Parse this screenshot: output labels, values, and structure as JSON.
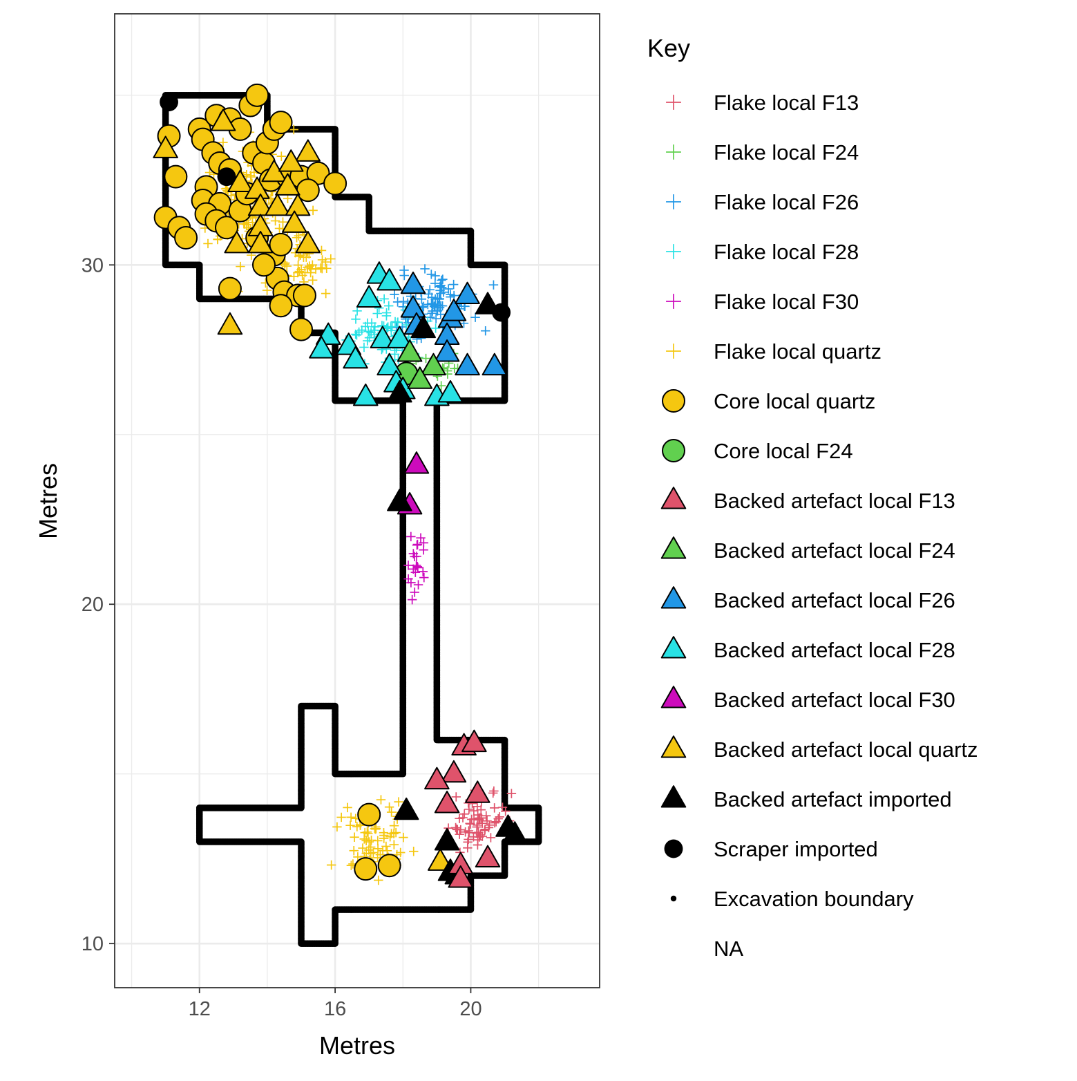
{
  "chart_data": {
    "type": "scatter",
    "title": "",
    "xlabel": "Metres",
    "ylabel": "Metres",
    "xlim": [
      9.5,
      23.8
    ],
    "ylim": [
      8.7,
      37.4
    ],
    "x_ticks": [
      12,
      16,
      20
    ],
    "y_ticks": [
      10,
      20,
      30
    ],
    "grid": true,
    "legend": {
      "title": "Key",
      "placement": "right",
      "entries": [
        {
          "label": "Flake local F13",
          "shape": "plus",
          "color": "#df536b"
        },
        {
          "label": "Flake local F24",
          "shape": "plus",
          "color": "#61d04f"
        },
        {
          "label": "Flake local F26",
          "shape": "plus",
          "color": "#2297e6"
        },
        {
          "label": "Flake local F28",
          "shape": "plus",
          "color": "#28e2e5"
        },
        {
          "label": "Flake local F30",
          "shape": "plus",
          "color": "#cd0bbc"
        },
        {
          "label": "Flake local quartz",
          "shape": "plus",
          "color": "#f5c710"
        },
        {
          "label": "Core local quartz",
          "shape": "circle",
          "color": "#f5c710"
        },
        {
          "label": "Core local F24",
          "shape": "circle",
          "color": "#61d04f"
        },
        {
          "label": "Backed artefact local F13",
          "shape": "triangle",
          "color": "#df536b"
        },
        {
          "label": "Backed artefact local F24",
          "shape": "triangle",
          "color": "#61d04f"
        },
        {
          "label": "Backed artefact local F26",
          "shape": "triangle",
          "color": "#2297e6"
        },
        {
          "label": "Backed artefact local F28",
          "shape": "triangle",
          "color": "#28e2e5"
        },
        {
          "label": "Backed artefact local F30",
          "shape": "triangle",
          "color": "#cd0bbc"
        },
        {
          "label": "Backed artefact local quartz",
          "shape": "triangle",
          "color": "#f5c710"
        },
        {
          "label": "Backed artefact imported",
          "shape": "solid-triangle",
          "color": "#000000"
        },
        {
          "label": "Scraper imported",
          "shape": "solid-circle",
          "color": "#000000"
        },
        {
          "label": "Excavation boundary",
          "shape": "dot",
          "color": "#000000"
        },
        {
          "label": "NA",
          "shape": "none",
          "color": ""
        }
      ]
    },
    "excavation_boundary": [
      [
        11,
        35
      ],
      [
        14,
        35
      ],
      [
        14,
        34
      ],
      [
        16,
        34
      ],
      [
        16,
        32
      ],
      [
        17,
        32
      ],
      [
        17,
        31
      ],
      [
        20,
        31
      ],
      [
        20,
        30
      ],
      [
        21,
        30
      ],
      [
        21,
        26
      ],
      [
        19,
        26
      ],
      [
        19,
        16
      ],
      [
        21,
        16
      ],
      [
        21,
        14
      ],
      [
        22,
        14
      ],
      [
        22,
        13
      ],
      [
        21,
        13
      ],
      [
        21,
        12
      ],
      [
        20,
        12
      ],
      [
        20,
        11
      ],
      [
        16,
        11
      ],
      [
        16,
        10
      ],
      [
        15,
        10
      ],
      [
        15,
        13
      ],
      [
        12,
        13
      ],
      [
        12,
        14
      ],
      [
        15,
        14
      ],
      [
        15,
        17
      ],
      [
        16,
        17
      ],
      [
        16,
        15
      ],
      [
        18,
        15
      ],
      [
        18,
        26
      ],
      [
        16,
        26
      ],
      [
        16,
        28
      ],
      [
        15,
        28
      ],
      [
        15,
        29
      ],
      [
        12,
        29
      ],
      [
        12,
        30
      ],
      [
        11,
        30
      ],
      [
        11,
        35
      ]
    ],
    "flake_clusters": [
      {
        "series": "Flake local quartz",
        "center": [
          13.6,
          31.8
        ],
        "spread": [
          1.25,
          1.7
        ],
        "count": 170
      },
      {
        "series": "Flake local quartz",
        "center": [
          15.1,
          29.9
        ],
        "spread": [
          1.0,
          0.8
        ],
        "count": 45
      },
      {
        "series": "Flake local quartz",
        "center": [
          17.2,
          13.1
        ],
        "spread": [
          1.0,
          1.0
        ],
        "count": 70
      },
      {
        "series": "Flake local F13",
        "center": [
          20.2,
          13.6
        ],
        "spread": [
          0.8,
          1.0
        ],
        "count": 70
      },
      {
        "series": "Flake local F26",
        "center": [
          19.0,
          28.9
        ],
        "spread": [
          1.2,
          0.9
        ],
        "count": 95
      },
      {
        "series": "Flake local F28",
        "center": [
          17.5,
          28.0
        ],
        "spread": [
          1.1,
          0.9
        ],
        "count": 70
      },
      {
        "series": "Flake local F24",
        "center": [
          19.1,
          26.9
        ],
        "spread": [
          0.9,
          0.5
        ],
        "count": 20
      },
      {
        "series": "Flake local F30",
        "center": [
          18.4,
          21.2
        ],
        "spread": [
          0.3,
          1.0
        ],
        "count": 22
      }
    ],
    "points": [
      {
        "series": "Core local quartz",
        "x": 11.1,
        "y": 33.8
      },
      {
        "series": "Core local quartz",
        "x": 11.3,
        "y": 32.6
      },
      {
        "series": "Core local quartz",
        "x": 11.0,
        "y": 31.4
      },
      {
        "series": "Core local quartz",
        "x": 11.4,
        "y": 31.1
      },
      {
        "series": "Core local quartz",
        "x": 11.6,
        "y": 30.8
      },
      {
        "series": "Core local quartz",
        "x": 12.0,
        "y": 34.0
      },
      {
        "series": "Core local quartz",
        "x": 12.1,
        "y": 33.7
      },
      {
        "series": "Core local quartz",
        "x": 12.5,
        "y": 34.4
      },
      {
        "series": "Core local quartz",
        "x": 12.9,
        "y": 34.3
      },
      {
        "series": "Core local quartz",
        "x": 13.2,
        "y": 34.0
      },
      {
        "series": "Core local quartz",
        "x": 13.5,
        "y": 34.7
      },
      {
        "series": "Core local quartz",
        "x": 13.7,
        "y": 35.0
      },
      {
        "series": "Core local quartz",
        "x": 12.4,
        "y": 33.3
      },
      {
        "series": "Core local quartz",
        "x": 12.6,
        "y": 33.0
      },
      {
        "series": "Core local quartz",
        "x": 12.9,
        "y": 32.8
      },
      {
        "series": "Core local quartz",
        "x": 12.2,
        "y": 32.3
      },
      {
        "series": "Core local quartz",
        "x": 12.1,
        "y": 31.9
      },
      {
        "series": "Core local quartz",
        "x": 12.6,
        "y": 31.8
      },
      {
        "series": "Core local quartz",
        "x": 12.2,
        "y": 31.5
      },
      {
        "series": "Core local quartz",
        "x": 12.5,
        "y": 31.3
      },
      {
        "series": "Core local quartz",
        "x": 12.8,
        "y": 31.1
      },
      {
        "series": "Core local quartz",
        "x": 13.2,
        "y": 31.6
      },
      {
        "series": "Core local quartz",
        "x": 13.4,
        "y": 32.1
      },
      {
        "series": "Core local quartz",
        "x": 13.6,
        "y": 33.3
      },
      {
        "series": "Core local quartz",
        "x": 13.9,
        "y": 33.0
      },
      {
        "series": "Core local quartz",
        "x": 14.0,
        "y": 33.6
      },
      {
        "series": "Core local quartz",
        "x": 14.2,
        "y": 34.0
      },
      {
        "series": "Core local quartz",
        "x": 14.4,
        "y": 34.2
      },
      {
        "series": "Core local quartz",
        "x": 14.1,
        "y": 32.5
      },
      {
        "series": "Core local quartz",
        "x": 14.6,
        "y": 32.6
      },
      {
        "series": "Core local quartz",
        "x": 15.0,
        "y": 32.6
      },
      {
        "series": "Core local quartz",
        "x": 15.5,
        "y": 32.7
      },
      {
        "series": "Core local quartz",
        "x": 16.0,
        "y": 32.4
      },
      {
        "series": "Core local quartz",
        "x": 15.2,
        "y": 32.2
      },
      {
        "series": "Core local quartz",
        "x": 13.7,
        "y": 30.8
      },
      {
        "series": "Core local quartz",
        "x": 14.2,
        "y": 30.3
      },
      {
        "series": "Core local quartz",
        "x": 14.4,
        "y": 30.6
      },
      {
        "series": "Core local quartz",
        "x": 14.3,
        "y": 29.6
      },
      {
        "series": "Core local quartz",
        "x": 14.5,
        "y": 29.2
      },
      {
        "series": "Core local quartz",
        "x": 13.9,
        "y": 30.0
      },
      {
        "series": "Core local quartz",
        "x": 12.9,
        "y": 29.3
      },
      {
        "series": "Core local quartz",
        "x": 14.9,
        "y": 29.1
      },
      {
        "series": "Core local quartz",
        "x": 15.1,
        "y": 29.1
      },
      {
        "series": "Core local quartz",
        "x": 14.4,
        "y": 28.8
      },
      {
        "series": "Core local quartz",
        "x": 15.0,
        "y": 28.1
      },
      {
        "series": "Core local quartz",
        "x": 17.0,
        "y": 13.8
      },
      {
        "series": "Core local quartz",
        "x": 16.9,
        "y": 12.2
      },
      {
        "series": "Core local quartz",
        "x": 17.6,
        "y": 12.3
      },
      {
        "series": "Core local F24",
        "x": 18.1,
        "y": 26.8
      },
      {
        "series": "Scraper imported",
        "x": 11.1,
        "y": 34.8
      },
      {
        "series": "Scraper imported",
        "x": 12.8,
        "y": 32.6
      },
      {
        "series": "Scraper imported",
        "x": 20.9,
        "y": 28.6
      },
      {
        "series": "Backed artefact local quartz",
        "x": 11.0,
        "y": 33.4
      },
      {
        "series": "Backed artefact local quartz",
        "x": 12.7,
        "y": 34.2
      },
      {
        "series": "Backed artefact local quartz",
        "x": 13.2,
        "y": 32.4
      },
      {
        "series": "Backed artefact local quartz",
        "x": 13.7,
        "y": 32.2
      },
      {
        "series": "Backed artefact local quartz",
        "x": 14.2,
        "y": 32.7
      },
      {
        "series": "Backed artefact local quartz",
        "x": 14.6,
        "y": 32.3
      },
      {
        "series": "Backed artefact local quartz",
        "x": 15.2,
        "y": 33.3
      },
      {
        "series": "Backed artefact local quartz",
        "x": 14.7,
        "y": 33.0
      },
      {
        "series": "Backed artefact local quartz",
        "x": 13.8,
        "y": 31.7
      },
      {
        "series": "Backed artefact local quartz",
        "x": 13.8,
        "y": 31.1
      },
      {
        "series": "Backed artefact local quartz",
        "x": 14.3,
        "y": 31.7
      },
      {
        "series": "Backed artefact local quartz",
        "x": 14.9,
        "y": 31.7
      },
      {
        "series": "Backed artefact local quartz",
        "x": 14.8,
        "y": 31.2
      },
      {
        "series": "Backed artefact local quartz",
        "x": 13.1,
        "y": 30.6
      },
      {
        "series": "Backed artefact local quartz",
        "x": 13.8,
        "y": 30.6
      },
      {
        "series": "Backed artefact local quartz",
        "x": 15.2,
        "y": 30.6
      },
      {
        "series": "Backed artefact local quartz",
        "x": 12.9,
        "y": 28.2
      },
      {
        "series": "Backed artefact local quartz",
        "x": 19.1,
        "y": 12.4
      },
      {
        "series": "Backed artefact local F28",
        "x": 15.8,
        "y": 27.9
      },
      {
        "series": "Backed artefact local F28",
        "x": 15.6,
        "y": 27.5
      },
      {
        "series": "Backed artefact local F28",
        "x": 16.4,
        "y": 27.6
      },
      {
        "series": "Backed artefact local F28",
        "x": 16.6,
        "y": 27.2
      },
      {
        "series": "Backed artefact local F28",
        "x": 17.0,
        "y": 29.0
      },
      {
        "series": "Backed artefact local F28",
        "x": 17.3,
        "y": 29.7
      },
      {
        "series": "Backed artefact local F28",
        "x": 17.6,
        "y": 29.5
      },
      {
        "series": "Backed artefact local F28",
        "x": 17.4,
        "y": 27.8
      },
      {
        "series": "Backed artefact local F28",
        "x": 17.9,
        "y": 27.8
      },
      {
        "series": "Backed artefact local F28",
        "x": 17.6,
        "y": 27.0
      },
      {
        "series": "Backed artefact local F28",
        "x": 17.8,
        "y": 26.5
      },
      {
        "series": "Backed artefact local F28",
        "x": 16.9,
        "y": 26.1
      },
      {
        "series": "Backed artefact local F28",
        "x": 18.0,
        "y": 26.3
      },
      {
        "series": "Backed artefact local F28",
        "x": 19.0,
        "y": 26.1
      },
      {
        "series": "Backed artefact local F28",
        "x": 19.4,
        "y": 26.2
      },
      {
        "series": "Backed artefact local F26",
        "x": 18.3,
        "y": 29.4
      },
      {
        "series": "Backed artefact local F26",
        "x": 18.3,
        "y": 28.7
      },
      {
        "series": "Backed artefact local F26",
        "x": 18.4,
        "y": 28.2
      },
      {
        "series": "Backed artefact local F26",
        "x": 19.4,
        "y": 28.4
      },
      {
        "series": "Backed artefact local F26",
        "x": 19.3,
        "y": 27.9
      },
      {
        "series": "Backed artefact local F26",
        "x": 19.3,
        "y": 27.4
      },
      {
        "series": "Backed artefact local F26",
        "x": 19.5,
        "y": 28.6
      },
      {
        "series": "Backed artefact local F26",
        "x": 19.9,
        "y": 29.1
      },
      {
        "series": "Backed artefact local F26",
        "x": 19.9,
        "y": 27.0
      },
      {
        "series": "Backed artefact local F26",
        "x": 20.7,
        "y": 27.0
      },
      {
        "series": "Backed artefact local F24",
        "x": 18.2,
        "y": 27.4
      },
      {
        "series": "Backed artefact local F24",
        "x": 18.9,
        "y": 27.0
      },
      {
        "series": "Backed artefact local F24",
        "x": 18.5,
        "y": 26.6
      },
      {
        "series": "Backed artefact local F30",
        "x": 18.4,
        "y": 24.1
      },
      {
        "series": "Backed artefact local F30",
        "x": 18.2,
        "y": 22.9
      },
      {
        "series": "Backed artefact imported",
        "x": 18.6,
        "y": 28.1
      },
      {
        "series": "Backed artefact imported",
        "x": 20.5,
        "y": 28.8
      },
      {
        "series": "Backed artefact imported",
        "x": 17.9,
        "y": 26.2
      },
      {
        "series": "Backed artefact imported",
        "x": 17.9,
        "y": 23.0
      },
      {
        "series": "Backed artefact imported",
        "x": 18.1,
        "y": 13.9
      },
      {
        "series": "Backed artefact imported",
        "x": 19.3,
        "y": 13.0
      },
      {
        "series": "Backed artefact imported",
        "x": 19.4,
        "y": 12.1
      },
      {
        "series": "Backed artefact imported",
        "x": 19.6,
        "y": 12.0
      },
      {
        "series": "Backed artefact imported",
        "x": 21.1,
        "y": 13.4
      },
      {
        "series": "Backed artefact imported",
        "x": 21.3,
        "y": 13.2
      },
      {
        "series": "Backed artefact local F13",
        "x": 19.8,
        "y": 15.8
      },
      {
        "series": "Backed artefact local F13",
        "x": 20.1,
        "y": 15.9
      },
      {
        "series": "Backed artefact local F13",
        "x": 19.5,
        "y": 15.0
      },
      {
        "series": "Backed artefact local F13",
        "x": 19.0,
        "y": 14.8
      },
      {
        "series": "Backed artefact local F13",
        "x": 20.2,
        "y": 14.4
      },
      {
        "series": "Backed artefact local F13",
        "x": 19.3,
        "y": 14.1
      },
      {
        "series": "Backed artefact local F13",
        "x": 20.5,
        "y": 12.5
      },
      {
        "series": "Backed artefact local F13",
        "x": 19.7,
        "y": 12.3
      },
      {
        "series": "Backed artefact local F13",
        "x": 19.7,
        "y": 11.9
      }
    ]
  }
}
